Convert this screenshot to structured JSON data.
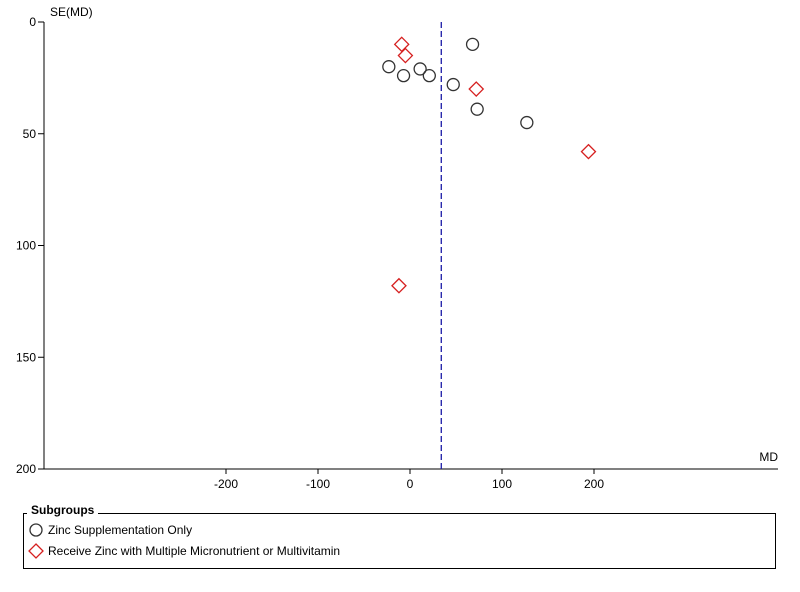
{
  "chart_data": {
    "type": "scatter",
    "title": "",
    "xlabel": "MD",
    "ylabel": "SE(MD)",
    "xlim": [
      -400,
      400
    ],
    "ylim": [
      0,
      200
    ],
    "y_reversed": true,
    "x_ticks": [
      -200,
      -100,
      0,
      100,
      200
    ],
    "y_ticks": [
      0,
      50,
      100,
      150,
      200
    ],
    "reference_line": {
      "x": 34,
      "style": "dashed",
      "color": "#1a1aa6"
    },
    "grid": false,
    "legend_position": "bottom",
    "legend_title": "Subgroups",
    "series": [
      {
        "name": "Zinc Supplementation Only",
        "marker": "circle",
        "color": "#333333",
        "points": [
          {
            "x": 68,
            "y": 10
          },
          {
            "x": -23,
            "y": 20
          },
          {
            "x": 11,
            "y": 21
          },
          {
            "x": -7,
            "y": 24
          },
          {
            "x": 21,
            "y": 24
          },
          {
            "x": 47,
            "y": 28
          },
          {
            "x": 73,
            "y": 39
          },
          {
            "x": 127,
            "y": 45
          }
        ]
      },
      {
        "name": "Receive Zinc with Multiple Micronutrient or Multivitamin",
        "marker": "diamond",
        "color": "#d62020",
        "points": [
          {
            "x": -9,
            "y": 10
          },
          {
            "x": -5,
            "y": 15
          },
          {
            "x": 72,
            "y": 30
          },
          {
            "x": 194,
            "y": 58
          },
          {
            "x": -12,
            "y": 118
          }
        ]
      }
    ]
  }
}
